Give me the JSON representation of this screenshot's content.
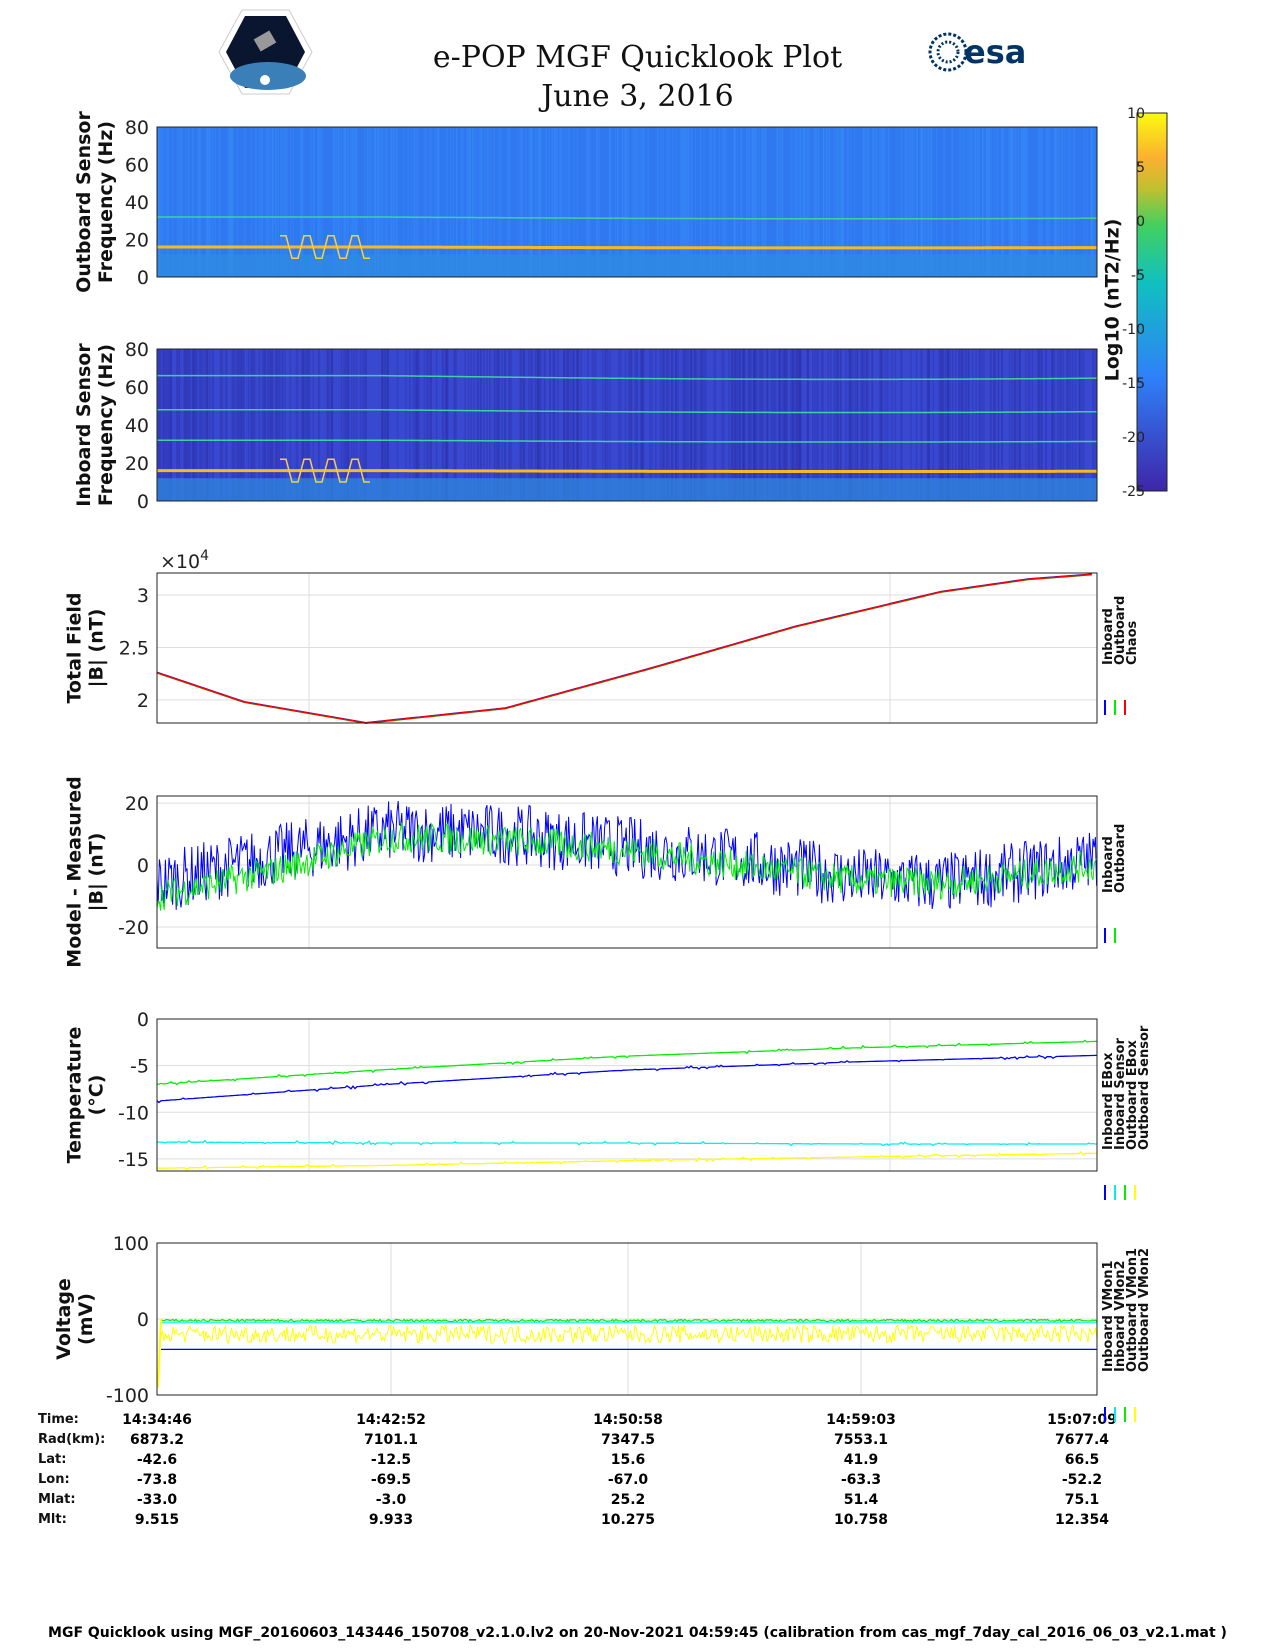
{
  "header": {
    "title": "e-POP MGF Quicklook Plot",
    "date": "June 3, 2016",
    "logo_left": "CASSIOPE",
    "logo_right": "esa"
  },
  "colors": {
    "inboard": "#0000ff",
    "outboard": "#00ee00",
    "chaos": "#ff0000",
    "cyan": "#00eeee",
    "yellow": "#ffff00",
    "grid": "#dddddd"
  },
  "chart_data": [
    {
      "type": "heatmap",
      "name": "outboard-spectrogram",
      "ylabel": [
        "Outboard Sensor",
        "Frequency (Hz)"
      ],
      "ylim": [
        0,
        80
      ],
      "yticks": [
        0,
        20,
        40,
        60,
        80
      ],
      "bands_hz": [
        16,
        32
      ],
      "colorbar_label": "Log10 (nT^2/Hz)"
    },
    {
      "type": "heatmap",
      "name": "inboard-spectrogram",
      "ylabel": [
        "Inboard Sensor",
        "Frequency (Hz)"
      ],
      "ylim": [
        0,
        80
      ],
      "yticks": [
        0,
        20,
        40,
        60,
        80
      ],
      "bands_hz": [
        16,
        32,
        48,
        66
      ]
    },
    {
      "type": "colorbar",
      "clim": [
        -25,
        10
      ],
      "ticks": [
        10,
        5,
        0,
        -5,
        -10,
        -15,
        -20,
        -25
      ],
      "label": "Log10 (nT2/Hz)"
    },
    {
      "type": "line",
      "name": "total-field",
      "ylabel": [
        "Total Field",
        "|B| (nT)"
      ],
      "exponent_label": "×10",
      "exponent": "4",
      "ylim": [
        1.78,
        3.21
      ],
      "yticks": [
        2,
        2.5,
        3
      ],
      "ytick_labels": [
        "2",
        "2.5",
        "3"
      ],
      "x_min": [
        0,
        3,
        7.2,
        12,
        17,
        22,
        27,
        30,
        32.38
      ],
      "values_1e4": [
        2.26,
        1.98,
        1.78,
        1.92,
        2.3,
        2.7,
        3.03,
        3.15,
        3.2
      ],
      "legend": [
        "Inboard",
        "Outboard",
        "Chaos"
      ]
    },
    {
      "type": "line",
      "name": "model-minus-measured",
      "ylabel": [
        "Model - Measured",
        "|B| (nT)"
      ],
      "ylim": [
        -26.8,
        22.3
      ],
      "yticks": [
        -20,
        0,
        20
      ],
      "ytick_labels": [
        "-20",
        "0",
        "20"
      ],
      "x_min": [
        0,
        4,
        8,
        12,
        16,
        20,
        24,
        27,
        30,
        32.38
      ],
      "series": [
        {
          "name": "Inboard",
          "center": [
            -6,
            3,
            11,
            10,
            6,
            2,
            -4,
            -6,
            -2,
            2
          ],
          "spread": 10
        },
        {
          "name": "Outboard",
          "center": [
            -10,
            -2,
            9,
            8,
            5,
            0,
            -5,
            -6,
            -3,
            0
          ],
          "spread": 5
        }
      ],
      "legend": [
        "Inboard",
        "Outboard"
      ]
    },
    {
      "type": "line",
      "name": "temperature",
      "ylabel": [
        "Temperature",
        "(°C)"
      ],
      "ylim": [
        -16.3,
        0
      ],
      "yticks": [
        -15,
        -10,
        -5,
        0
      ],
      "ytick_labels": [
        "-15",
        "-10",
        "-5",
        "0"
      ],
      "x_min": [
        0,
        8,
        16,
        24,
        32.38
      ],
      "series": [
        {
          "name": "Inboard EBox",
          "values": [
            -8.8,
            -7,
            -5.5,
            -4.6,
            -3.9
          ]
        },
        {
          "name": "Inboard Sensor",
          "values": [
            -13.2,
            -13.3,
            -13.3,
            -13.4,
            -13.4
          ]
        },
        {
          "name": "Outboard EBox",
          "values": [
            -7,
            -5.4,
            -4,
            -3.1,
            -2.4
          ]
        },
        {
          "name": "Outboard Sensor",
          "values": [
            -16,
            -15.7,
            -15.2,
            -14.8,
            -14.4
          ]
        }
      ],
      "legend": [
        "Inboard EBox",
        "Inboard Sensor",
        "Outboard EBox",
        "Outboard Sensor"
      ]
    },
    {
      "type": "line",
      "name": "voltage",
      "ylabel": [
        "Voltage",
        "(mV)"
      ],
      "ylim": [
        -100,
        100
      ],
      "yticks": [
        -100,
        0,
        100
      ],
      "ytick_labels": [
        "-100",
        "0",
        "100"
      ],
      "series": [
        {
          "name": "Inboard VMon1",
          "value": -40
        },
        {
          "name": "Inboard VMon2",
          "value": -5
        },
        {
          "name": "Outboard VMon1",
          "value": -2
        },
        {
          "name": "Outboard VMon2",
          "value": -20,
          "spread": 12
        }
      ],
      "legend": [
        "Inboard VMon1",
        "Inboard VMon2",
        "Outboard VMon1",
        "Outboard VMon2"
      ]
    }
  ],
  "table": {
    "row_labels": [
      "Time:",
      "Rad(km):",
      "Lat:",
      "Lon:",
      "Mlat:",
      "Mlt:"
    ],
    "columns": [
      [
        "14:34:46",
        "6873.2",
        "-42.6",
        "-73.8",
        "-33.0",
        "9.515"
      ],
      [
        "14:42:52",
        "7101.1",
        "-12.5",
        "-69.5",
        "-3.0",
        "9.933"
      ],
      [
        "14:50:58",
        "7347.5",
        "15.6",
        "-67.0",
        "25.2",
        "10.275"
      ],
      [
        "14:59:03",
        "7553.1",
        "41.9",
        "-63.3",
        "51.4",
        "10.758"
      ],
      [
        "15:07:09",
        "7677.4",
        "66.5",
        "-52.2",
        "75.1",
        "12.354"
      ]
    ]
  },
  "footer": "MGF Quicklook using MGF_20160603_143446_150708_v2.1.0.lv2 on 20-Nov-2021 04:59:45 (calibration from cas_mgf_7day_cal_2016_06_03_v2.1.mat )"
}
